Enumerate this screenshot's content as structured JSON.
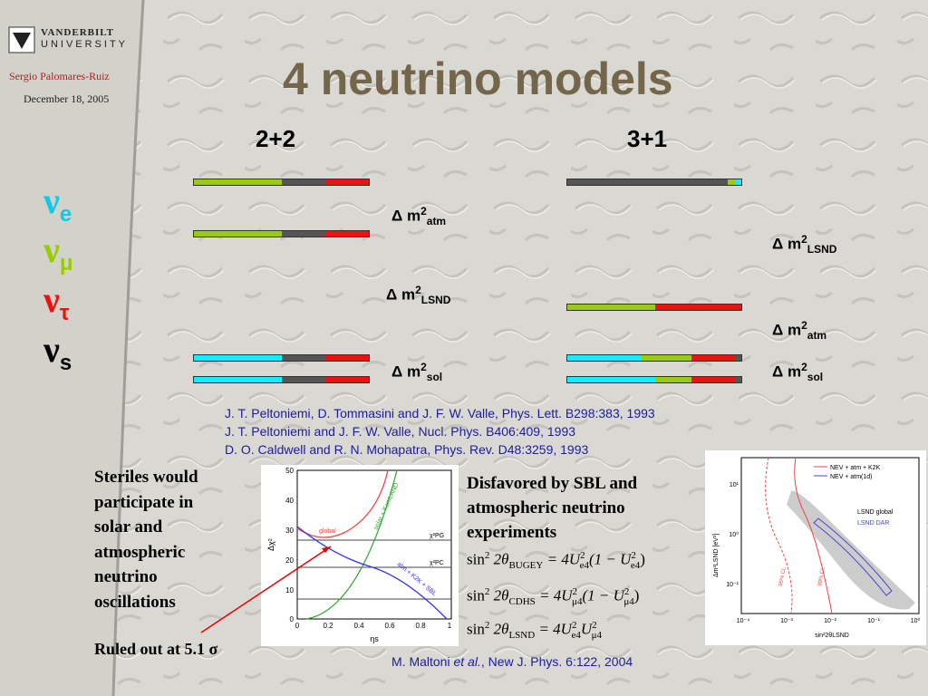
{
  "header": {
    "university": "VANDERBILT",
    "university_sub": "UNIVERSITY",
    "author": "Sergio Palomares-Ruiz",
    "date": "December 18, 2005"
  },
  "title": "4 neutrino models",
  "flavors": [
    {
      "symbol": "ν",
      "sub": "e"
    },
    {
      "symbol": "ν",
      "sub": "μ"
    },
    {
      "symbol": "ν",
      "sub": "τ"
    },
    {
      "symbol": "ν",
      "sub": "s"
    }
  ],
  "models": [
    {
      "label": "2+2",
      "splittings": [
        {
          "delta": "Δ",
          "m": "m",
          "exp": "2",
          "sub": "atm"
        },
        {
          "delta": "Δ",
          "m": "m",
          "exp": "2",
          "sub": "LSND"
        },
        {
          "delta": "Δ",
          "m": "m",
          "exp": "2",
          "sub": "sol"
        }
      ]
    },
    {
      "label": "3+1",
      "splittings": [
        {
          "delta": "Δ",
          "m": "m",
          "exp": "2",
          "sub": "LSND"
        },
        {
          "delta": "Δ",
          "m": "m",
          "exp": "2",
          "sub": "atm"
        },
        {
          "delta": "Δ",
          "m": "m",
          "exp": "2",
          "sub": "sol"
        }
      ]
    }
  ],
  "references": [
    "J. T. Peltoniemi, D. Tommasini and J. F. W. Valle, Phys. Lett. B298:383, 1993",
    "J. T. Peltoniemi and J. F. W. Valle, Nucl. Phys. B406:409, 1993",
    "D. O. Caldwell and R. N. Mohapatra, Phys. Rev. D48:3259, 1993"
  ],
  "steriles_note": "Steriles would participate in solar and atmospheric neutrino oscillations",
  "ruled_out": "Ruled out at 5.1 σ",
  "disfavored": "Disfavored by SBL and atmospheric neutrino experiments",
  "formulas": [
    {
      "sin": "sin",
      "sin_exp": "2",
      "angle": "2θ",
      "angle_sub": "BUGEY",
      "eq": "= 4U",
      "u_exp": "2",
      "u_sub": "e4",
      "open": "(1 − U",
      "u2_exp": "2",
      "u2_sub": "e4",
      "close": ")"
    },
    {
      "sin": "sin",
      "sin_exp": "2",
      "angle": "2θ",
      "angle_sub": "CDHS",
      "eq": "= 4U",
      "u_exp": "2",
      "u_sub": "μ4",
      "open": "(1 − U",
      "u2_exp": "2",
      "u2_sub": "μ4",
      "close": ")"
    },
    {
      "sin": "sin",
      "sin_exp": "2",
      "angle": "2θ",
      "angle_sub": "LSND",
      "eq": "= 4U",
      "u_exp": "2",
      "u_sub": "e4",
      "u2": "U",
      "u2_exp": "2",
      "u2_sub": "μ4"
    }
  ],
  "citation": {
    "author": "M. Maltoni ",
    "etal": "et al.",
    "rest": ", New J. Phys. 6:122, 2004"
  },
  "left_plot": {
    "yticks": [
      "0",
      "10",
      "20",
      "30",
      "40",
      "50"
    ],
    "xticks": [
      "0",
      "0.2",
      "0.4",
      "0.6",
      "0.8",
      "1"
    ],
    "ylabel": "Δχ²",
    "xlabel": "ηs",
    "curves": [
      "global",
      "solar + KamLAND",
      "atm + K2K + SBL"
    ],
    "levels": [
      "χ²PG",
      "χ²PC"
    ]
  },
  "right_plot": {
    "legend": [
      "NEV + atm + K2K",
      "NEV + atm(1d)"
    ],
    "regions": [
      "LSND global",
      "LSND DAR"
    ],
    "cl": [
      "95% CL",
      "99% CL"
    ],
    "ylabel": "Δm²LSND [eV²]",
    "xlabel": "sin²2θLSND",
    "xticks": [
      "10⁻⁴",
      "10⁻³",
      "10⁻²",
      "10⁻¹",
      "10⁰"
    ],
    "yticks": [
      "10¹",
      "10⁰",
      "10⁻¹"
    ]
  }
}
